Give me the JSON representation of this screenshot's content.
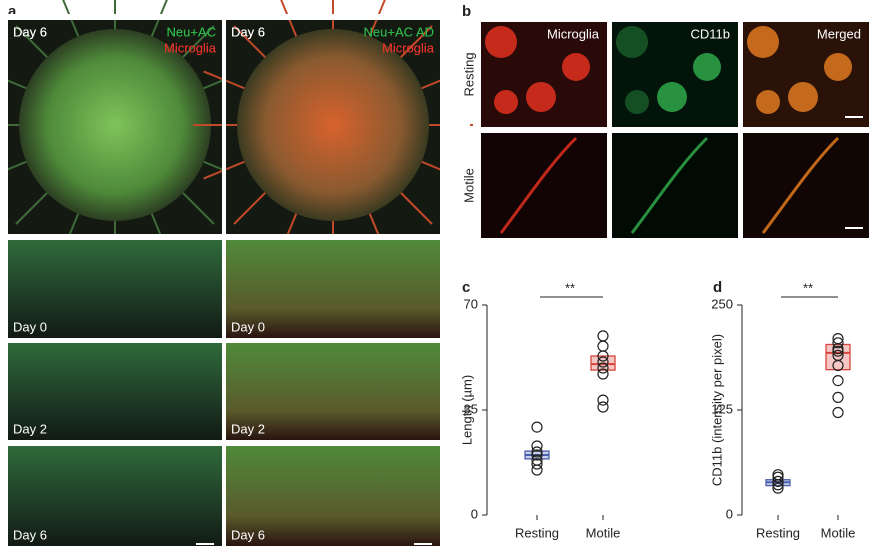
{
  "panel_a": {
    "label": "a",
    "columns": [
      {
        "green_label": "Neu+AC",
        "red_label": "Microglia"
      },
      {
        "green_label": "Neu+AC AD",
        "red_label": "Microglia"
      }
    ],
    "days": [
      [
        "Day 6",
        "Day 0",
        "Day 2",
        "Day 6"
      ],
      [
        "Day 6",
        "Day 0",
        "Day 2",
        "Day 6"
      ]
    ]
  },
  "panel_b": {
    "label": "b",
    "channels": [
      "Microglia",
      "CD11b",
      "Merged"
    ],
    "rows": [
      "Resting",
      "Motile"
    ]
  },
  "chart_data": [
    {
      "type": "box",
      "panel_label": "c",
      "ylabel": "Length (µm)",
      "significance": "**",
      "categories": [
        "Resting",
        "Motile"
      ],
      "ylim": [
        0,
        70
      ],
      "yticks": [
        0,
        35,
        70
      ],
      "boxes": [
        {
          "q1": 18.7,
          "median": 20,
          "q3": 21.3,
          "color": "#4a5fae"
        },
        {
          "q1": 48.3,
          "median": 50.3,
          "q3": 53,
          "color": "#d9443c"
        }
      ],
      "points": [
        [
          29.3,
          23,
          21,
          20,
          18.3,
          17,
          15
        ],
        [
          59.7,
          56.3,
          53,
          51,
          49,
          47,
          38.3,
          36
        ]
      ]
    },
    {
      "type": "box",
      "panel_label": "d",
      "ylabel": "CD11b (intensity per pixel)",
      "significance": "**",
      "categories": [
        "Resting",
        "Motile"
      ],
      "ylim": [
        0,
        250
      ],
      "yticks": [
        0,
        125,
        250
      ],
      "boxes": [
        {
          "q1": 35,
          "median": 39,
          "q3": 42,
          "color": "#4a5fae"
        },
        {
          "q1": 173,
          "median": 193,
          "q3": 203,
          "color": "#d9443c"
        }
      ],
      "points": [
        [
          48,
          45,
          40,
          36,
          32
        ],
        [
          210,
          205,
          198,
          195,
          190,
          178,
          160,
          140,
          122
        ]
      ]
    }
  ]
}
